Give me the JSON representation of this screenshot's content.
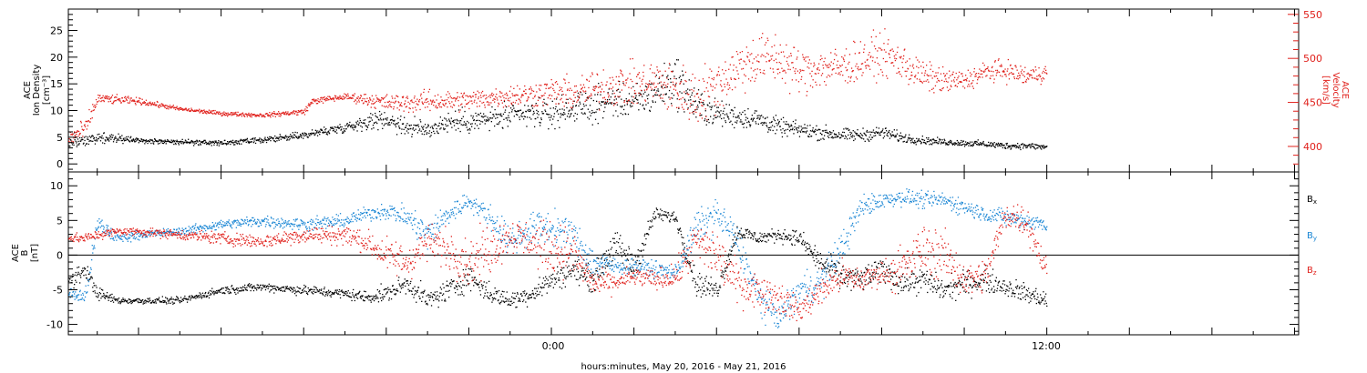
{
  "figure": {
    "xlabel": "hours:minutes, May 20, 2016 - May 21, 2016",
    "x_ticks": [
      {
        "hours": 0,
        "label": "0:00"
      },
      {
        "hours": 12,
        "label": "12:00"
      }
    ]
  },
  "chart_data": [
    {
      "type": "scatter",
      "panel": "plasma",
      "left_axis": {
        "label_lines": [
          "ACE",
          "Ion Density",
          "[cm⁻³]"
        ],
        "ylim": [
          -1.5,
          29
        ],
        "ticks": [
          0,
          5,
          10,
          15,
          20,
          25
        ]
      },
      "right_axis": {
        "label_lines": [
          "ACE",
          "Velocity",
          "[km/s]"
        ],
        "ylim": [
          371,
          556
        ],
        "ticks": [
          400,
          450,
          500,
          550
        ],
        "color": "#e0201b"
      },
      "x_range_hours": [
        -11.7,
        18.1
      ],
      "series": [
        {
          "name": "",
          "axis": "left",
          "color": "#000000",
          "x": [
            -11.7,
            -11,
            -10,
            -9,
            -8,
            -7,
            -6,
            -5,
            -4.5,
            -4,
            -3.5,
            -3,
            -2.5,
            -2,
            -1.5,
            -1,
            -0.5,
            0,
            0.5,
            1,
            1.5,
            2,
            2.5,
            3,
            3.5,
            4,
            4.5,
            5,
            5.5,
            6,
            6.5,
            7,
            7.5,
            8,
            8.5,
            9,
            9.5,
            10,
            10.5,
            11,
            11.5,
            12
          ],
          "y": [
            4,
            5,
            4.5,
            4.2,
            4,
            4.5,
            5.5,
            7,
            8,
            8.5,
            7,
            6.5,
            8,
            8,
            8.5,
            9,
            9.5,
            9.5,
            10.5,
            11,
            12,
            11.5,
            13.5,
            16,
            11,
            9.5,
            9,
            8.5,
            7,
            6.5,
            6,
            5.5,
            5.5,
            6,
            5,
            4.5,
            4.2,
            4,
            3.8,
            3.5,
            3.5,
            3.2
          ],
          "spread": [
            1.5,
            0.8,
            0.4,
            0.4,
            0.4,
            0.5,
            0.6,
            0.8,
            1.2,
            1.5,
            1.6,
            1.5,
            1.6,
            1.8,
            1.8,
            2,
            2,
            2.2,
            2.2,
            2.5,
            2.5,
            2.8,
            3,
            4,
            3,
            2,
            1.8,
            1.6,
            1.4,
            1.2,
            1.2,
            1,
            1,
            1,
            0.8,
            0.6,
            0.5,
            0.5,
            0.5,
            0.5,
            0.5,
            0.5
          ]
        },
        {
          "name": "",
          "axis": "right",
          "color": "#e0201b",
          "x": [
            -11.7,
            -11.3,
            -11,
            -10,
            -9,
            -8,
            -7,
            -6,
            -5.8,
            -5,
            -4.5,
            -4,
            -3.5,
            -3,
            -2.5,
            -2,
            -1.5,
            -1,
            -0.5,
            0,
            0.5,
            1,
            1.5,
            2,
            2.5,
            3,
            3.5,
            4,
            4.5,
            5,
            5.5,
            6,
            6.5,
            7,
            7.5,
            8,
            8.5,
            9,
            9.5,
            10,
            10.5,
            11,
            11.5,
            12
          ],
          "y": [
            410,
            420,
            455,
            452,
            443,
            438,
            436,
            440,
            452,
            457,
            454,
            450,
            450,
            452,
            452,
            453,
            456,
            458,
            460,
            462,
            460,
            465,
            470,
            470,
            473,
            465,
            455,
            470,
            490,
            500,
            500,
            485,
            490,
            490,
            498,
            505,
            495,
            480,
            475,
            475,
            485,
            487,
            480,
            485
          ],
          "spread": [
            8,
            10,
            5,
            3,
            2,
            2,
            2,
            3,
            3,
            3,
            6,
            8,
            9,
            10,
            10,
            10,
            10,
            11,
            12,
            14,
            16,
            18,
            20,
            20,
            22,
            25,
            28,
            25,
            25,
            25,
            25,
            22,
            20,
            20,
            20,
            20,
            18,
            15,
            12,
            10,
            10,
            10,
            10,
            8
          ]
        }
      ]
    },
    {
      "type": "scatter",
      "panel": "magnetic",
      "left_axis": {
        "label_lines": [
          "ACE",
          "B",
          "[nT]"
        ],
        "ylim": [
          -11.5,
          12
        ],
        "ticks": [
          -10,
          -5,
          0,
          5,
          10
        ]
      },
      "zero_line": true,
      "x_range_hours": [
        -11.7,
        18.1
      ],
      "legend": {
        "placement": "right"
      },
      "series": [
        {
          "name": "Bx",
          "name_base": "B",
          "name_sub": "x",
          "color": "#000000",
          "x": [
            -11.7,
            -11.3,
            -11,
            -10.5,
            -10,
            -9,
            -8,
            -7,
            -6,
            -5,
            -4.5,
            -4,
            -3.5,
            -3,
            -2.5,
            -2,
            -1.5,
            -1,
            -0.5,
            0,
            0.5,
            1,
            1.5,
            2,
            2.5,
            3,
            3.5,
            4,
            4.5,
            5,
            5.5,
            6,
            6.5,
            7,
            7.5,
            8,
            8.5,
            9,
            9.5,
            10,
            10.5,
            11,
            11.5,
            12
          ],
          "y": [
            -4,
            -2,
            -5.5,
            -6.5,
            -6.5,
            -6.5,
            -5,
            -4.5,
            -5,
            -5.5,
            -6,
            -5.5,
            -4,
            -6.5,
            -5,
            -3,
            -5.5,
            -6.5,
            -5.5,
            -3.5,
            -2,
            -3.5,
            1.5,
            -1.5,
            6,
            5.5,
            -4,
            -5,
            3.5,
            2.5,
            3,
            2.5,
            -1,
            -3,
            -3.5,
            -2,
            -4,
            -3.5,
            -5,
            -4,
            -3.5,
            -4.5,
            -5.5,
            -6.5
          ],
          "spread": [
            1.2,
            1,
            0.8,
            0.4,
            0.4,
            0.4,
            0.5,
            0.5,
            0.6,
            0.6,
            0.8,
            1,
            1.2,
            1.2,
            1.5,
            1.5,
            1.2,
            1,
            1.2,
            1.5,
            1.5,
            1.5,
            2,
            2,
            0.8,
            0.8,
            1.5,
            1.2,
            1,
            0.8,
            0.8,
            1,
            1.5,
            1.5,
            1.5,
            1.5,
            1.5,
            1.5,
            1.5,
            1.5,
            1.5,
            1.2,
            1.2,
            1
          ]
        },
        {
          "name": "By",
          "name_base": "B",
          "name_sub": "y",
          "color": "#1a86d4",
          "x": [
            -11.7,
            -11.3,
            -11,
            -10.5,
            -10,
            -9,
            -8,
            -7,
            -6,
            -5,
            -4.5,
            -4,
            -3.5,
            -3,
            -2.5,
            -2,
            -1.5,
            -1,
            -0.5,
            0,
            0.5,
            1,
            1.5,
            2,
            2.5,
            3,
            3.5,
            4,
            4.5,
            5,
            5.5,
            6,
            6.5,
            7,
            7.5,
            8,
            8.5,
            9,
            9.5,
            10,
            10.5,
            11,
            11.5,
            12
          ],
          "y": [
            -5.5,
            -6,
            4.5,
            2.5,
            3,
            3.5,
            4.5,
            5,
            4.5,
            5,
            6,
            6.5,
            5.5,
            3,
            6,
            8,
            5.5,
            2,
            4,
            4,
            3,
            -1,
            -1.5,
            -1.5,
            -2,
            -2.5,
            4,
            6,
            2,
            -6,
            -9,
            -5,
            -4,
            1,
            7,
            8,
            8.5,
            8,
            8,
            7,
            6,
            5.5,
            5,
            4.5
          ],
          "spread": [
            0.8,
            1,
            1.5,
            0.6,
            0.5,
            0.5,
            0.6,
            0.7,
            0.8,
            0.8,
            0.8,
            1,
            1.5,
            2,
            1.5,
            1,
            1.5,
            2,
            2,
            2,
            2,
            2,
            1,
            1,
            1,
            1,
            2,
            2,
            2,
            2,
            1.5,
            2,
            2,
            2,
            1.5,
            1,
            1,
            1,
            1,
            1,
            1,
            1,
            1,
            1
          ]
        },
        {
          "name": "Bz",
          "name_base": "B",
          "name_sub": "z",
          "color": "#e0201b",
          "x": [
            -11.7,
            -11.3,
            -11,
            -10.5,
            -10,
            -9,
            -8,
            -7,
            -6,
            -5,
            -4.5,
            -4,
            -3.5,
            -3,
            -2.5,
            -2,
            -1.5,
            -1,
            -0.5,
            0,
            0.5,
            1,
            1.5,
            2,
            2.5,
            3,
            3.5,
            4,
            4.5,
            5,
            5.5,
            6,
            6.5,
            7,
            7.5,
            8,
            8.5,
            9,
            9.5,
            10,
            10.5,
            11,
            11.5,
            12
          ],
          "y": [
            2.5,
            2.5,
            3,
            3.5,
            3.5,
            3,
            2.5,
            2,
            3,
            3,
            2,
            0,
            -1,
            2,
            1,
            -1,
            1,
            3,
            2,
            1,
            0.5,
            -4,
            -4,
            -3,
            -3.5,
            -3,
            2,
            0,
            -4,
            -5,
            -6,
            -8,
            -5,
            -3,
            -3.5,
            -2.5,
            -2,
            1,
            0,
            -3.5,
            -3,
            6,
            5,
            -2.5
          ],
          "spread": [
            0.6,
            0.6,
            0.6,
            0.5,
            0.5,
            0.6,
            0.8,
            0.8,
            1,
            1.2,
            1.5,
            2,
            2.5,
            2,
            2.5,
            3,
            3,
            2,
            2.5,
            3,
            3,
            1.5,
            1.2,
            1.2,
            1.2,
            1.5,
            3,
            3,
            2.5,
            2,
            2,
            1.5,
            2,
            2,
            1.5,
            1.5,
            3,
            3,
            3,
            2,
            2,
            2,
            2,
            1.5
          ]
        }
      ]
    }
  ]
}
